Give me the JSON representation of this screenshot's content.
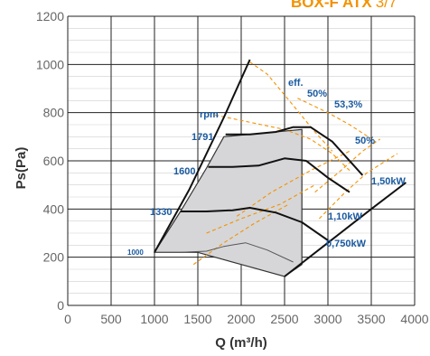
{
  "header": {
    "model": "BOX-F ATX",
    "page": "3/7"
  },
  "chart_data": {
    "type": "line",
    "title": "",
    "xlabel": "Q (m³/h)",
    "ylabel": "Ps(Pa)",
    "xlim": [
      0,
      4000
    ],
    "ylim": [
      0,
      1200
    ],
    "x_ticks": [
      "0",
      "500",
      "1000",
      "1500",
      "2000",
      "2500",
      "3000",
      "3500",
      "4000"
    ],
    "y_ticks": [
      "0",
      "200",
      "400",
      "600",
      "800",
      "1000",
      "1200"
    ],
    "grid": true,
    "operating_region": [
      [
        1000,
        220
      ],
      [
        1300,
        390
      ],
      [
        1600,
        570
      ],
      [
        1800,
        700
      ],
      [
        2100,
        710
      ],
      [
        2700,
        730
      ],
      [
        2700,
        170
      ],
      [
        2500,
        120
      ],
      [
        2000,
        170
      ],
      [
        1500,
        220
      ]
    ],
    "system_curve": [
      [
        1000,
        220
      ],
      [
        1400,
        480
      ],
      [
        1800,
        780
      ],
      [
        2100,
        1020
      ]
    ],
    "max_power_line": [
      [
        2500,
        120
      ],
      [
        3000,
        260
      ],
      [
        3500,
        400
      ],
      [
        3900,
        510
      ]
    ],
    "rpm_curves": [
      {
        "label": "1791",
        "points": [
          [
            1820,
            710
          ],
          [
            2100,
            710
          ],
          [
            2400,
            720
          ],
          [
            2600,
            740
          ],
          [
            2800,
            740
          ],
          [
            3050,
            680
          ],
          [
            3300,
            580
          ],
          [
            3400,
            540
          ]
        ]
      },
      {
        "label": "1600",
        "points": [
          [
            1620,
            575
          ],
          [
            1900,
            575
          ],
          [
            2200,
            580
          ],
          [
            2500,
            610
          ],
          [
            2750,
            600
          ],
          [
            3000,
            530
          ],
          [
            3250,
            470
          ]
        ]
      },
      {
        "label": "1330",
        "points": [
          [
            1300,
            390
          ],
          [
            1600,
            390
          ],
          [
            1900,
            395
          ],
          [
            2100,
            405
          ],
          [
            2400,
            385
          ],
          [
            2700,
            345
          ],
          [
            3000,
            270
          ]
        ]
      },
      {
        "label": "1000",
        "points": [
          [
            1000,
            220
          ],
          [
            1300,
            220
          ],
          [
            1600,
            225
          ],
          [
            1800,
            245
          ],
          [
            2050,
            260
          ],
          [
            2300,
            230
          ],
          [
            2600,
            180
          ]
        ]
      }
    ],
    "efficiency_curves": [
      {
        "label": "eff.",
        "points": [
          [
            2100,
            1010
          ],
          [
            2300,
            960
          ],
          [
            2600,
            830
          ],
          [
            2850,
            720
          ],
          [
            3050,
            640
          ]
        ]
      },
      {
        "label": "50%",
        "points": [
          [
            1700,
            790
          ],
          [
            2100,
            760
          ],
          [
            2500,
            730
          ],
          [
            2800,
            690
          ],
          [
            3050,
            630
          ],
          [
            3250,
            560
          ]
        ]
      },
      {
        "label": "53,3%",
        "points": [
          [
            2650,
            860
          ],
          [
            3000,
            800
          ],
          [
            3250,
            750
          ],
          [
            3550,
            680
          ]
        ]
      },
      {
        "label": "50%",
        "points": [
          [
            2850,
            470
          ],
          [
            3150,
            560
          ],
          [
            3400,
            640
          ],
          [
            3600,
            690
          ]
        ]
      }
    ],
    "power_lines": [
      {
        "label": "1,50kW",
        "points": [
          [
            2900,
            360
          ],
          [
            3200,
            470
          ],
          [
            3450,
            550
          ],
          [
            3800,
            630
          ]
        ]
      },
      {
        "label": "1,10kW",
        "points": [
          [
            1950,
            370
          ],
          [
            2350,
            470
          ],
          [
            2800,
            560
          ],
          [
            3250,
            640
          ]
        ]
      },
      {
        "label": "0,750kW",
        "points": [
          [
            1600,
            300
          ],
          [
            2000,
            360
          ],
          [
            2450,
            420
          ],
          [
            2850,
            500
          ]
        ]
      },
      {
        "label": "",
        "points": [
          [
            1450,
            170
          ],
          [
            1800,
            260
          ],
          [
            2150,
            340
          ],
          [
            2550,
            420
          ]
        ]
      }
    ],
    "annotations": [
      "rpm",
      "1791",
      "1600",
      "1330",
      "1000",
      "eff.",
      "50%",
      "53,3%",
      "50%",
      "1,50kW",
      "1,10kW",
      "0,750kW"
    ]
  }
}
